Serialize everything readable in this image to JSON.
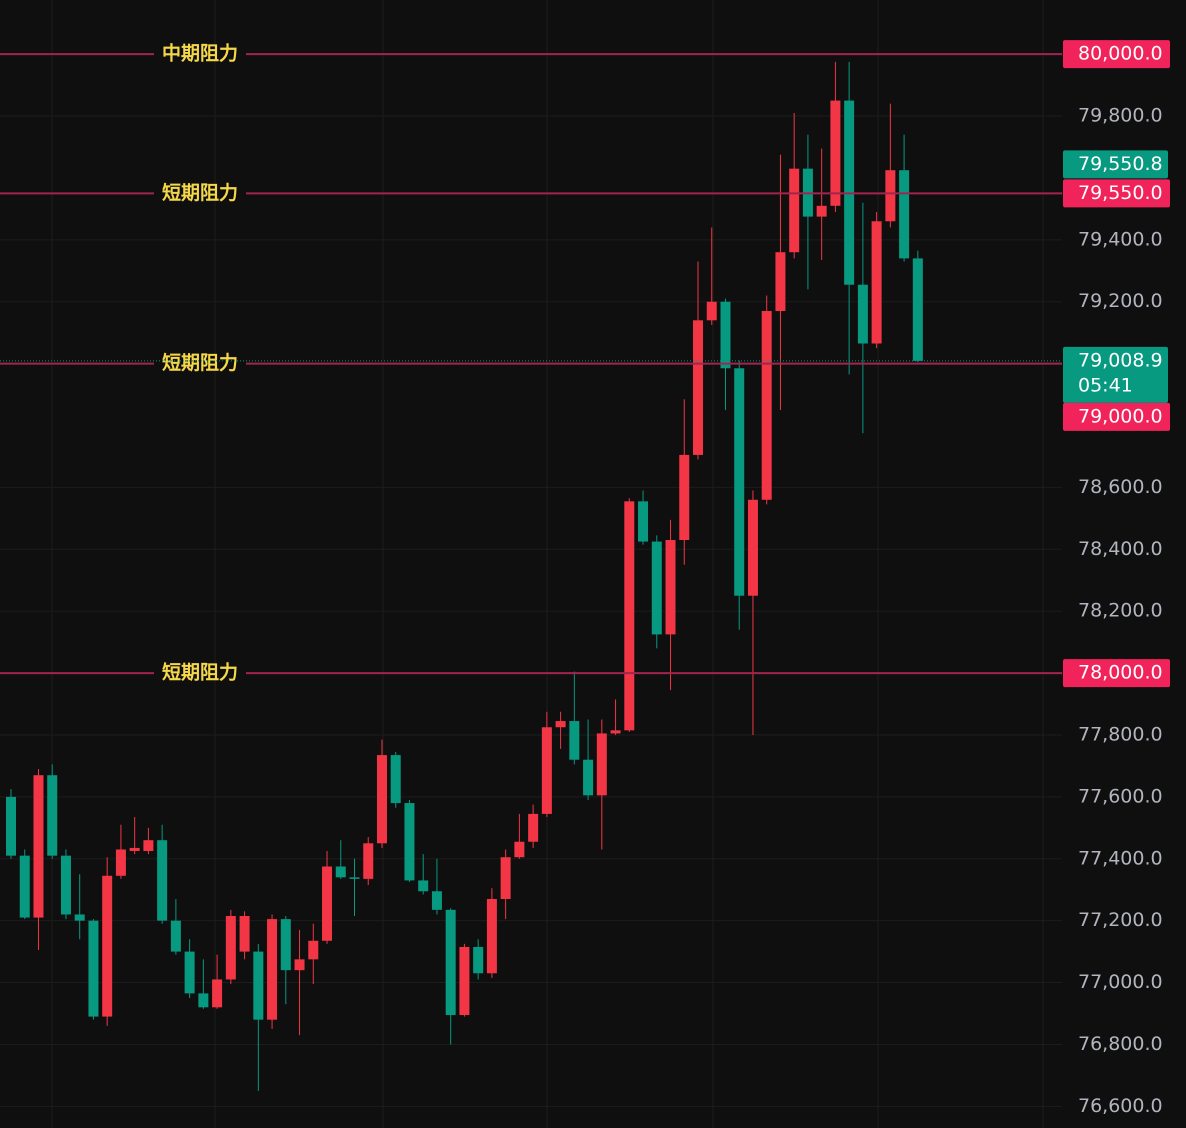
{
  "chart_data": {
    "type": "candlestick",
    "up_color": "#f23645",
    "down_color": "#089981",
    "level_color": "#a3244f",
    "level_badge_color": "#f0245a",
    "grid": true,
    "ylim": [
      76530,
      80175
    ],
    "yticks": [
      {
        "value": 79800,
        "label": "79,800.0"
      },
      {
        "value": 79400,
        "label": "79,400.0"
      },
      {
        "value": 79200,
        "label": "79,200.0"
      },
      {
        "value": 78600,
        "label": "78,600.0"
      },
      {
        "value": 78400,
        "label": "78,400.0"
      },
      {
        "value": 78200,
        "label": "78,200.0"
      },
      {
        "value": 77800,
        "label": "77,800.0"
      },
      {
        "value": 77600,
        "label": "77,600.0"
      },
      {
        "value": 77400,
        "label": "77,400.0"
      },
      {
        "value": 77200,
        "label": "77,200.0"
      },
      {
        "value": 77000,
        "label": "77,000.0"
      },
      {
        "value": 76800,
        "label": "76,800.0"
      },
      {
        "value": 76600,
        "label": "76,600.0"
      }
    ],
    "open": [
      77600,
      77410,
      77210,
      77670,
      77410,
      77220,
      77200,
      76890,
      77345,
      77425,
      77425,
      77460,
      77200,
      77100,
      76965,
      76920,
      77010,
      77100,
      77100,
      76880,
      77205,
      77040,
      77075,
      77135,
      77375,
      77340,
      77335,
      77450,
      77735,
      77580,
      77330,
      77295,
      77235,
      76895,
      77115,
      77030,
      77270,
      77405,
      77455,
      77545,
      77825,
      77845,
      77720,
      77605,
      77805,
      77815,
      78555,
      78425,
      78125,
      78430,
      78705,
      79140,
      79200,
      78985,
      78250,
      78560,
      79170,
      79360,
      79630,
      79475,
      79510,
      79850,
      79255,
      79065,
      79460,
      79625,
      79340
    ],
    "high": [
      77625,
      77430,
      77690,
      77705,
      77430,
      77350,
      77205,
      77405,
      77510,
      77535,
      77500,
      77510,
      77270,
      77140,
      77075,
      77090,
      77235,
      77230,
      77125,
      77220,
      77215,
      77170,
      77190,
      77425,
      77460,
      77400,
      77470,
      77785,
      77745,
      77590,
      77415,
      77400,
      77240,
      77125,
      77140,
      77305,
      77430,
      77545,
      77575,
      77875,
      77875,
      78005,
      77850,
      77850,
      77915,
      78565,
      78590,
      78445,
      78495,
      78885,
      79330,
      79440,
      79210,
      79010,
      78590,
      79220,
      79675,
      79810,
      79740,
      79695,
      79975,
      79975,
      79520,
      79490,
      79840,
      79740,
      79365
    ],
    "low": [
      77400,
      77205,
      77105,
      77400,
      77205,
      77140,
      76880,
      76860,
      77335,
      77415,
      77415,
      77190,
      77090,
      76950,
      76915,
      76915,
      76995,
      77075,
      76650,
      76850,
      76930,
      76830,
      76995,
      77125,
      77335,
      77215,
      77315,
      77435,
      77565,
      77325,
      77285,
      77220,
      76800,
      76890,
      77010,
      77015,
      77205,
      77400,
      77435,
      77535,
      77755,
      77705,
      77590,
      77430,
      77800,
      77810,
      78415,
      78080,
      77945,
      78350,
      78690,
      79125,
      78850,
      78140,
      77800,
      78545,
      78850,
      79340,
      79240,
      79335,
      79490,
      78965,
      78775,
      79050,
      79440,
      79330,
      79005
    ],
    "close": [
      77410,
      77210,
      77670,
      77410,
      77220,
      77200,
      76890,
      77345,
      77430,
      77435,
      77460,
      77200,
      77100,
      76965,
      76920,
      77010,
      77215,
      77215,
      76880,
      77205,
      77040,
      77075,
      77135,
      77375,
      77340,
      77335,
      77450,
      77735,
      77580,
      77330,
      77295,
      77235,
      76895,
      77115,
      77030,
      77270,
      77405,
      77455,
      77545,
      77825,
      77845,
      77720,
      77605,
      77805,
      77815,
      78555,
      78425,
      78125,
      78430,
      78705,
      79140,
      79200,
      78985,
      78250,
      78560,
      79170,
      79360,
      79630,
      79475,
      79510,
      79850,
      79255,
      79065,
      79460,
      79625,
      79340,
      79008.9
    ],
    "levels": [
      {
        "value": 80000,
        "name": "中期阻力",
        "label": "80,000.0"
      },
      {
        "value": 79550,
        "name": "短期阻力",
        "label": "79,550.0"
      },
      {
        "value": 79000,
        "name": "短期阻力",
        "label": "79,000.0"
      },
      {
        "value": 78000,
        "name": "短期阻力",
        "label": "78,000.0"
      }
    ],
    "last_price": {
      "value": 79008.9,
      "label": "79,008.9",
      "countdown": "05:41"
    },
    "marker": {
      "value": 79550.8,
      "label": "79,550.8"
    }
  }
}
